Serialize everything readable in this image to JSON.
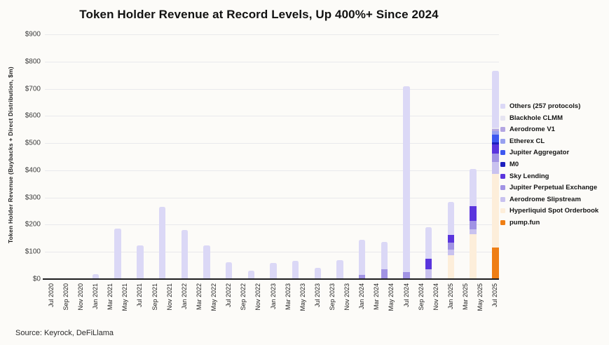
{
  "chart": {
    "title": "Token Holder Revenue at Record Levels, Up 400%+ Since 2024",
    "source": "Source: Keyrock, DeFiLlama",
    "y_axis": {
      "title": "Token Holder Revenue (Buybacks + Direct Distribution, $m)"
    }
  },
  "chart_data": {
    "type": "bar",
    "stacked": true,
    "title": "Token Holder Revenue at Record Levels, Up 400%+ Since 2024",
    "xlabel": "",
    "ylabel": "Token Holder Revenue (Buybacks + Direct Distribution, $m)",
    "ylim": [
      0,
      900
    ],
    "grid": true,
    "legend_position": "right",
    "y_ticks": [
      "$0",
      "$100",
      "$200",
      "$300",
      "$400",
      "$500",
      "$600",
      "$700",
      "$800",
      "$900"
    ],
    "x_tick_labels": [
      "Jul 2020",
      "Sep 2020",
      "Nov 2020",
      "Jan 2021",
      "Mar 2021",
      "May 2021",
      "Jul 2021",
      "Sep 2021",
      "Nov 2021",
      "Jan 2022",
      "Mar 2022",
      "May 2022",
      "Jul 2022",
      "Sep 2022",
      "Nov 2022",
      "Jan 2023",
      "Mar 2023",
      "May 2023",
      "Jul 2023",
      "Sep 2023",
      "Nov 2023",
      "Jan 2024",
      "Mar 2024",
      "May 2024",
      "Jul 2024",
      "Sep 2024",
      "Nov 2024",
      "Jan 2025",
      "Mar 2025",
      "May 2025",
      "Jul 2025"
    ],
    "months_span": 61,
    "series_colors": {
      "others": "#dbd8f6",
      "blackhole_clmm": "#e6e4f1",
      "aerodrome_v1": "#b4a6e2",
      "etherex_cl": "#97a0ef",
      "jupiter_aggregator": "#3d58f0",
      "m0": "#1d1fbe",
      "sky_lending": "#5a35dd",
      "jupiter_perpetual_exchange": "#a193e4",
      "aerodrome_slipstream": "#c9c2ef",
      "hyperliquid_spot_orderbook": "#fdeeda",
      "pump_fun": "#ef7e14"
    },
    "legend": [
      {
        "key": "others",
        "label": "Others (257 protocols)"
      },
      {
        "key": "blackhole_clmm",
        "label": "Blackhole CLMM"
      },
      {
        "key": "aerodrome_v1",
        "label": "Aerodrome V1"
      },
      {
        "key": "etherex_cl",
        "label": "Etherex CL"
      },
      {
        "key": "jupiter_aggregator",
        "label": "Jupiter Aggregator"
      },
      {
        "key": "m0",
        "label": "M0"
      },
      {
        "key": "sky_lending",
        "label": "Sky Lending"
      },
      {
        "key": "jupiter_perpetual_exchange",
        "label": "Jupiter Perpetual Exchange"
      },
      {
        "key": "aerodrome_slipstream",
        "label": "Aerodrome Slipstream"
      },
      {
        "key": "hyperliquid_spot_orderbook",
        "label": "Hyperliquid Spot Orderbook"
      },
      {
        "key": "pump_fun",
        "label": "pump.fun"
      }
    ],
    "bars": [
      {
        "month": "Jul 2020",
        "month_index": 0,
        "total": 0,
        "segments": []
      },
      {
        "month": "Oct 2020",
        "month_index": 3,
        "total": 0,
        "segments": []
      },
      {
        "month": "Jan 2021",
        "month_index": 6,
        "total": 18,
        "segments": [
          [
            "others",
            18
          ]
        ]
      },
      {
        "month": "Apr 2021",
        "month_index": 9,
        "total": 185,
        "segments": [
          [
            "others",
            185
          ]
        ]
      },
      {
        "month": "Jul 2021",
        "month_index": 12,
        "total": 125,
        "segments": [
          [
            "others",
            125
          ]
        ]
      },
      {
        "month": "Oct 2021",
        "month_index": 15,
        "total": 265,
        "segments": [
          [
            "others",
            265
          ]
        ]
      },
      {
        "month": "Jan 2022",
        "month_index": 18,
        "total": 180,
        "segments": [
          [
            "others",
            180
          ]
        ]
      },
      {
        "month": "Apr 2022",
        "month_index": 21,
        "total": 123,
        "segments": [
          [
            "others",
            123
          ]
        ]
      },
      {
        "month": "Jul 2022",
        "month_index": 24,
        "total": 63,
        "segments": [
          [
            "others",
            63
          ]
        ]
      },
      {
        "month": "Oct 2022",
        "month_index": 27,
        "total": 30,
        "segments": [
          [
            "others",
            30
          ]
        ]
      },
      {
        "month": "Jan 2023",
        "month_index": 30,
        "total": 60,
        "segments": [
          [
            "others",
            60
          ]
        ]
      },
      {
        "month": "Apr 2023",
        "month_index": 33,
        "total": 68,
        "segments": [
          [
            "others",
            68
          ]
        ]
      },
      {
        "month": "Jul 2023",
        "month_index": 36,
        "total": 42,
        "segments": [
          [
            "others",
            42
          ]
        ]
      },
      {
        "month": "Oct 2023",
        "month_index": 39,
        "total": 70,
        "segments": [
          [
            "others",
            70
          ]
        ]
      },
      {
        "month": "Jan 2024",
        "month_index": 42,
        "total": 145,
        "segments": [
          [
            "jupiter_perpetual_exchange",
            15
          ],
          [
            "others",
            130
          ]
        ]
      },
      {
        "month": "Apr 2024",
        "month_index": 45,
        "total": 138,
        "segments": [
          [
            "jupiter_perpetual_exchange",
            35
          ],
          [
            "others",
            103
          ]
        ]
      },
      {
        "month": "Jul 2024",
        "month_index": 48,
        "total": 710,
        "segments": [
          [
            "jupiter_perpetual_exchange",
            25
          ],
          [
            "others",
            685
          ]
        ]
      },
      {
        "month": "Oct 2024",
        "month_index": 51,
        "total": 190,
        "segments": [
          [
            "aerodrome_slipstream",
            36
          ],
          [
            "sky_lending",
            39
          ],
          [
            "others",
            115
          ]
        ]
      },
      {
        "month": "Jan 2025",
        "month_index": 54,
        "total": 285,
        "segments": [
          [
            "hyperliquid_spot_orderbook",
            88
          ],
          [
            "aerodrome_slipstream",
            20
          ],
          [
            "jupiter_perpetual_exchange",
            25
          ],
          [
            "sky_lending",
            30
          ],
          [
            "others",
            122
          ]
        ]
      },
      {
        "month": "Apr 2025",
        "month_index": 57,
        "total": 405,
        "segments": [
          [
            "hyperliquid_spot_orderbook",
            166
          ],
          [
            "aerodrome_slipstream",
            18
          ],
          [
            "jupiter_perpetual_exchange",
            30
          ],
          [
            "sky_lending",
            55
          ],
          [
            "others",
            136
          ]
        ]
      },
      {
        "month": "Jul 2025",
        "month_index": 60,
        "total": 765,
        "segments": [
          [
            "pump_fun",
            115
          ],
          [
            "hyperliquid_spot_orderbook",
            272
          ],
          [
            "aerodrome_slipstream",
            44
          ],
          [
            "jupiter_perpetual_exchange",
            30
          ],
          [
            "sky_lending",
            33
          ],
          [
            "m0",
            10
          ],
          [
            "jupiter_aggregator",
            26
          ],
          [
            "etherex_cl",
            13
          ],
          [
            "aerodrome_v1",
            8
          ],
          [
            "blackhole_clmm",
            5
          ],
          [
            "others",
            209
          ]
        ]
      }
    ]
  }
}
